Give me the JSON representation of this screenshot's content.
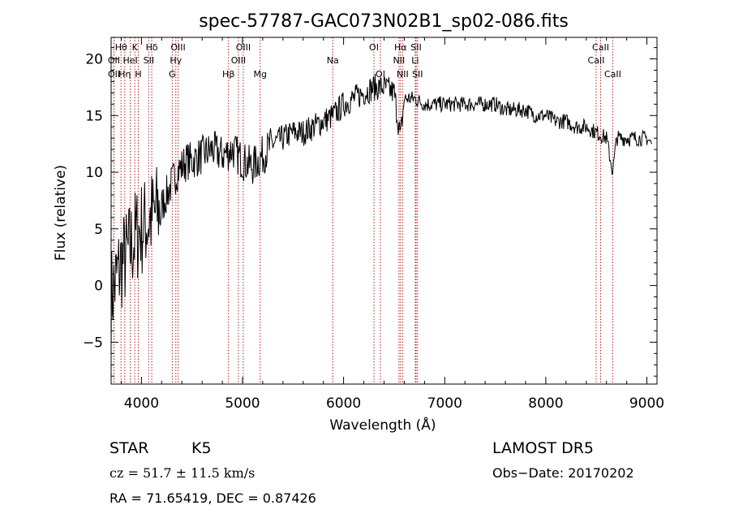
{
  "chart_data": {
    "type": "line",
    "title": "spec-57787-GAC073N02B1_sp02-086.fits",
    "xlabel": "Wavelength (Å)",
    "ylabel": "Flux (relative)",
    "xlim": [
      3700,
      9100
    ],
    "ylim": [
      -8.7,
      21.9
    ],
    "xticks": [
      4000,
      5000,
      6000,
      7000,
      8000,
      9000
    ],
    "xtick_labels": [
      "4000",
      "5000",
      "6000",
      "7000",
      "8000",
      "9000"
    ],
    "yticks": [
      -5,
      0,
      5,
      10,
      15,
      20
    ],
    "ytick_labels": [
      "−5",
      "0",
      "5",
      "10",
      "15",
      "20"
    ],
    "grid": false,
    "legend": "none",
    "line_color": "#000000",
    "marker_color": "#b22222",
    "series": [
      {
        "x": [
          3700,
          3750,
          3800,
          3850,
          3900,
          3950,
          4000,
          4050,
          4100,
          4150,
          4200,
          4250,
          4300,
          4350,
          4400,
          4450,
          4500,
          4600,
          4700,
          4800,
          4900,
          5000,
          5100,
          5200,
          5300,
          5400,
          5500,
          5600,
          5700,
          5800,
          5900,
          6000,
          6100,
          6200,
          6300,
          6400,
          6500,
          6563,
          6600,
          6700,
          6800,
          6900,
          7000,
          7100,
          7200,
          7300,
          7400,
          7500,
          7600,
          7700,
          7800,
          7900,
          8000,
          8100,
          8200,
          8300,
          8400,
          8500,
          8600,
          8662,
          8700,
          8800,
          8900,
          9000,
          9050
        ],
        "y": [
          -1,
          0.5,
          2,
          2.5,
          3.5,
          4.5,
          5,
          5.5,
          6,
          6.5,
          7,
          8,
          9,
          10,
          10.5,
          11,
          11,
          11.5,
          12,
          11.5,
          12,
          11,
          10.5,
          11.5,
          12.5,
          13,
          13.5,
          13.5,
          14,
          14.5,
          15,
          16,
          16.5,
          17,
          17.5,
          17.5,
          17,
          13,
          16.5,
          16.5,
          16,
          16,
          16,
          16,
          16,
          16,
          16,
          16,
          15.5,
          15.5,
          15.5,
          15,
          15,
          14.5,
          14.5,
          14,
          14,
          13.5,
          13,
          10,
          13,
          13,
          13,
          13,
          12.5
        ]
      }
    ],
    "line_markers": [
      {
        "name": "Hθ",
        "x": 3798,
        "row": 1
      },
      {
        "name": "OII",
        "x": 3727,
        "row": 2
      },
      {
        "name": "OII",
        "x": 3729,
        "row": 3
      },
      {
        "name": "Hη",
        "x": 3835,
        "row": 3
      },
      {
        "name": "HeI",
        "x": 3889,
        "row": 2
      },
      {
        "name": "K",
        "x": 3934,
        "row": 1
      },
      {
        "name": "H",
        "x": 3969,
        "row": 3
      },
      {
        "name": "Hδ",
        "x": 4102,
        "row": 1
      },
      {
        "name": "SII",
        "x": 4072,
        "row": 2
      },
      {
        "name": "OIII",
        "x": 4363,
        "row": 1
      },
      {
        "name": "Hγ",
        "x": 4340,
        "row": 2
      },
      {
        "name": "G",
        "x": 4305,
        "row": 3
      },
      {
        "name": "OIII",
        "x": 5007,
        "row": 1
      },
      {
        "name": "OIII",
        "x": 4959,
        "row": 2
      },
      {
        "name": "Hβ",
        "x": 4861,
        "row": 3
      },
      {
        "name": "Mg",
        "x": 5175,
        "row": 3
      },
      {
        "name": "Na",
        "x": 5893,
        "row": 2
      },
      {
        "name": "OI",
        "x": 6300,
        "row": 1
      },
      {
        "name": "OI",
        "x": 6364,
        "row": 3
      },
      {
        "name": "Hα",
        "x": 6563,
        "row": 1
      },
      {
        "name": "NII",
        "x": 6548,
        "row": 2
      },
      {
        "name": "NII",
        "x": 6584,
        "row": 3
      },
      {
        "name": "SII",
        "x": 6717,
        "row": 1
      },
      {
        "name": "Li",
        "x": 6708,
        "row": 2
      },
      {
        "name": "SII",
        "x": 6731,
        "row": 3
      },
      {
        "name": "CaII",
        "x": 8542,
        "row": 1
      },
      {
        "name": "CaII",
        "x": 8498,
        "row": 2
      },
      {
        "name": "CaII",
        "x": 8662,
        "row": 3
      }
    ]
  },
  "info": {
    "class_label": "STAR",
    "subclass_label": "K5",
    "cz_text": "cz = 51.7 ± 11.5 km/s",
    "coords_text": "RA =  71.65419, DEC =   0.87426",
    "survey_label": "LAMOST  DR5",
    "obsdate_text": "Obs−Date: 20170202"
  }
}
